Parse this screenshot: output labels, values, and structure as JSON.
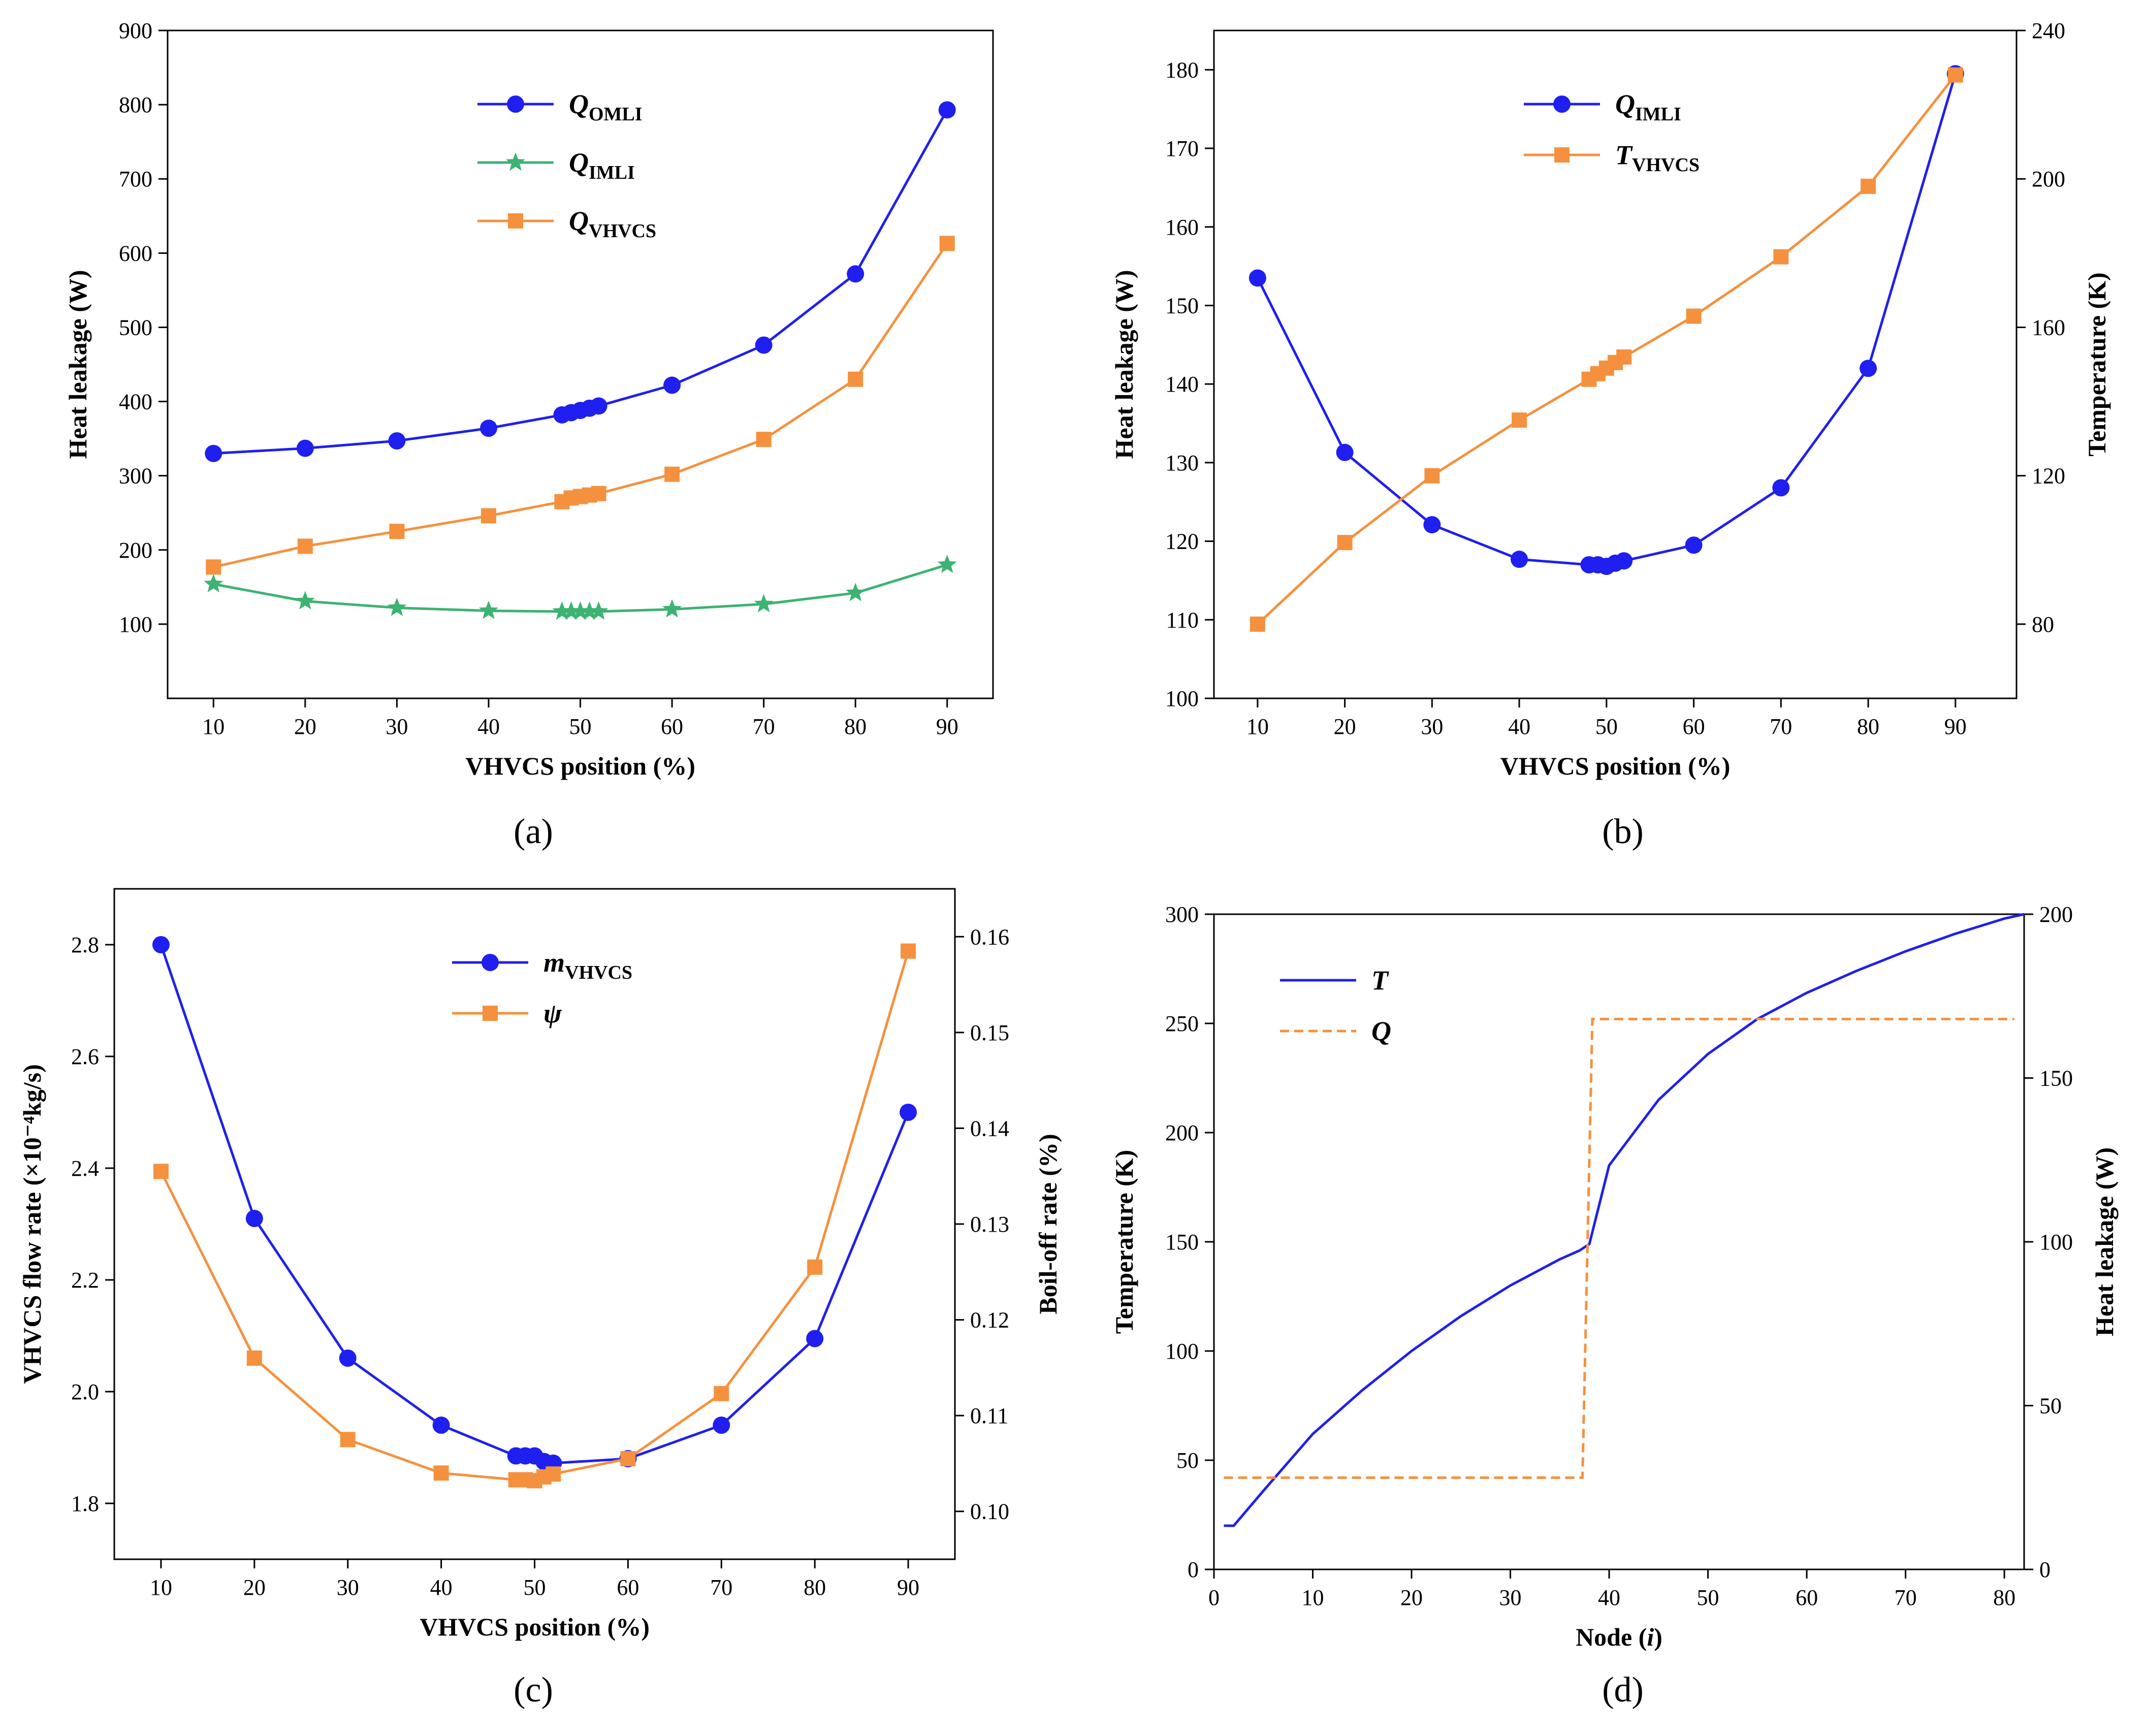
{
  "figure": {
    "captions": [
      "(a)",
      "(b)",
      "(c)",
      "(d)"
    ]
  },
  "colors": {
    "blue": "#1f1fef",
    "orange": "#f5913e",
    "green": "#3cb371",
    "axis": "#000000"
  },
  "chart_data": [
    {
      "id": "a",
      "type": "line",
      "xlabel": "VHVCS position (%)",
      "ylabel": "Heat leakage (W)",
      "xlim": [
        5,
        95
      ],
      "ylim": [
        0,
        900
      ],
      "xticks": [
        10,
        20,
        30,
        40,
        50,
        60,
        70,
        80,
        90
      ],
      "yticks": [
        100,
        200,
        300,
        400,
        500,
        600,
        700,
        800,
        900
      ],
      "legend_position": "top-center",
      "series": [
        {
          "name": "Q",
          "sub": "OMLI",
          "color": "#1f1fef",
          "marker": "circle",
          "x": [
            10,
            20,
            30,
            40,
            48,
            49,
            50,
            51,
            52,
            60,
            70,
            80,
            90
          ],
          "y": [
            330,
            337,
            347,
            364,
            382,
            385,
            388,
            391,
            394,
            422,
            476,
            572,
            793
          ]
        },
        {
          "name": "Q",
          "sub": "IMLI",
          "color": "#3cb371",
          "marker": "star",
          "x": [
            10,
            20,
            30,
            40,
            48,
            49,
            50,
            51,
            52,
            60,
            70,
            80,
            90
          ],
          "y": [
            154,
            131,
            122,
            118,
            117,
            117,
            117,
            117,
            117,
            120,
            127,
            142,
            180
          ]
        },
        {
          "name": "Q",
          "sub": "VHVCS",
          "color": "#f5913e",
          "marker": "square",
          "x": [
            10,
            20,
            30,
            40,
            48,
            49,
            50,
            51,
            52,
            60,
            70,
            80,
            90
          ],
          "y": [
            177,
            205,
            225,
            246,
            265,
            270,
            272,
            274,
            276,
            302,
            349,
            430,
            613
          ]
        }
      ]
    },
    {
      "id": "b",
      "type": "line",
      "xlabel": "VHVCS position (%)",
      "ylabel": "Heat leakage (W)",
      "y2label": "Temperature (K)",
      "xlim": [
        5,
        97
      ],
      "ylim": [
        100,
        185
      ],
      "y2lim": [
        60,
        240
      ],
      "xticks": [
        10,
        20,
        30,
        40,
        50,
        60,
        70,
        80,
        90
      ],
      "yticks": [
        100,
        110,
        120,
        130,
        140,
        150,
        160,
        170,
        180
      ],
      "y2ticks": [
        80,
        120,
        160,
        200,
        240
      ],
      "legend_position": "top-center",
      "series": [
        {
          "name": "Q",
          "sub": "IMLI",
          "color": "#1f1fef",
          "marker": "circle",
          "axis": "left",
          "x": [
            10,
            20,
            30,
            40,
            48,
            49,
            50,
            51,
            52,
            60,
            70,
            80,
            90
          ],
          "y": [
            153.5,
            131.3,
            122.1,
            117.7,
            117.0,
            117.0,
            116.8,
            117.2,
            117.5,
            119.5,
            126.8,
            142.0,
            179.5
          ]
        },
        {
          "name": "T",
          "sub": "VHVCS",
          "color": "#f5913e",
          "marker": "square",
          "axis": "right",
          "x": [
            10,
            20,
            30,
            40,
            48,
            49,
            50,
            51,
            52,
            60,
            70,
            80,
            90
          ],
          "y": [
            80,
            102,
            120,
            135,
            146,
            147.5,
            149,
            150.5,
            152,
            163,
            179,
            198,
            228
          ]
        }
      ]
    },
    {
      "id": "c",
      "type": "line",
      "xlabel": "VHVCS position (%)",
      "ylabel": "VHVCS flow rate (×10⁻⁴kg/s)",
      "y2label": "Boil-off rate (%)",
      "xlim": [
        5,
        95
      ],
      "ylim": [
        1.7,
        2.9
      ],
      "y2lim": [
        0.095,
        0.165
      ],
      "xticks": [
        10,
        20,
        30,
        40,
        50,
        60,
        70,
        80,
        90
      ],
      "yticks": [
        1.8,
        2.0,
        2.2,
        2.4,
        2.6,
        2.8
      ],
      "ytick_labels": [
        "1.8",
        "2.0",
        "2.2",
        "2.4",
        "2.6",
        "2.8"
      ],
      "y2ticks": [
        0.1,
        0.11,
        0.12,
        0.13,
        0.14,
        0.15,
        0.16
      ],
      "y2tick_labels": [
        "0.10",
        "0.11",
        "0.12",
        "0.13",
        "0.14",
        "0.15",
        "0.16"
      ],
      "legend_position": "top-center",
      "series": [
        {
          "name": "m",
          "sub": "VHVCS",
          "color": "#1f1fef",
          "marker": "circle",
          "axis": "left",
          "x": [
            10,
            20,
            30,
            40,
            48,
            49,
            50,
            51,
            52,
            60,
            70,
            80,
            90
          ],
          "y": [
            2.8,
            2.31,
            2.06,
            1.94,
            1.885,
            1.885,
            1.885,
            1.875,
            1.872,
            1.88,
            1.94,
            2.095,
            2.5
          ]
        },
        {
          "name": "ψ",
          "sub": "",
          "color": "#f5913e",
          "marker": "square",
          "axis": "right",
          "x": [
            10,
            20,
            30,
            40,
            48,
            49,
            50,
            51,
            52,
            60,
            70,
            80,
            90
          ],
          "y": [
            0.1355,
            0.116,
            0.1075,
            0.104,
            0.1033,
            0.1033,
            0.1032,
            0.1036,
            0.1039,
            0.1055,
            0.1123,
            0.1255,
            0.1585
          ]
        }
      ]
    },
    {
      "id": "d",
      "type": "line",
      "xlabel": "Node (",
      "xlabel_var": "i",
      "xlabel_end": ")",
      "ylabel": "Temperature (K)",
      "y2label": "Heat leakage (W)",
      "xlim": [
        0,
        82
      ],
      "ylim": [
        0,
        300
      ],
      "y2lim": [
        0,
        200
      ],
      "xticks": [
        0,
        10,
        20,
        30,
        40,
        50,
        60,
        70,
        80
      ],
      "yticks": [
        0,
        50,
        100,
        150,
        200,
        250,
        300
      ],
      "y2ticks": [
        0,
        50,
        100,
        150,
        200
      ],
      "legend_position": "top-left",
      "series": [
        {
          "name": "T",
          "sub": "",
          "color": "#1f1fef",
          "style": "solid",
          "axis": "left",
          "x": [
            1,
            2,
            5,
            10,
            15,
            20,
            25,
            30,
            35,
            37,
            38,
            40,
            45,
            50,
            55,
            60,
            65,
            70,
            75,
            80,
            82
          ],
          "y": [
            20,
            20,
            36,
            62,
            82,
            100,
            116,
            130,
            142,
            146,
            149,
            185,
            215,
            236,
            252,
            264,
            274,
            283,
            291,
            298,
            300
          ]
        },
        {
          "name": "Q",
          "sub": "",
          "color": "#f5913e",
          "style": "dashed",
          "axis": "right",
          "x": [
            1,
            37.3,
            37.3,
            38.3,
            38.3,
            81
          ],
          "y": [
            28,
            28,
            28,
            168,
            168,
            168
          ]
        }
      ]
    }
  ]
}
